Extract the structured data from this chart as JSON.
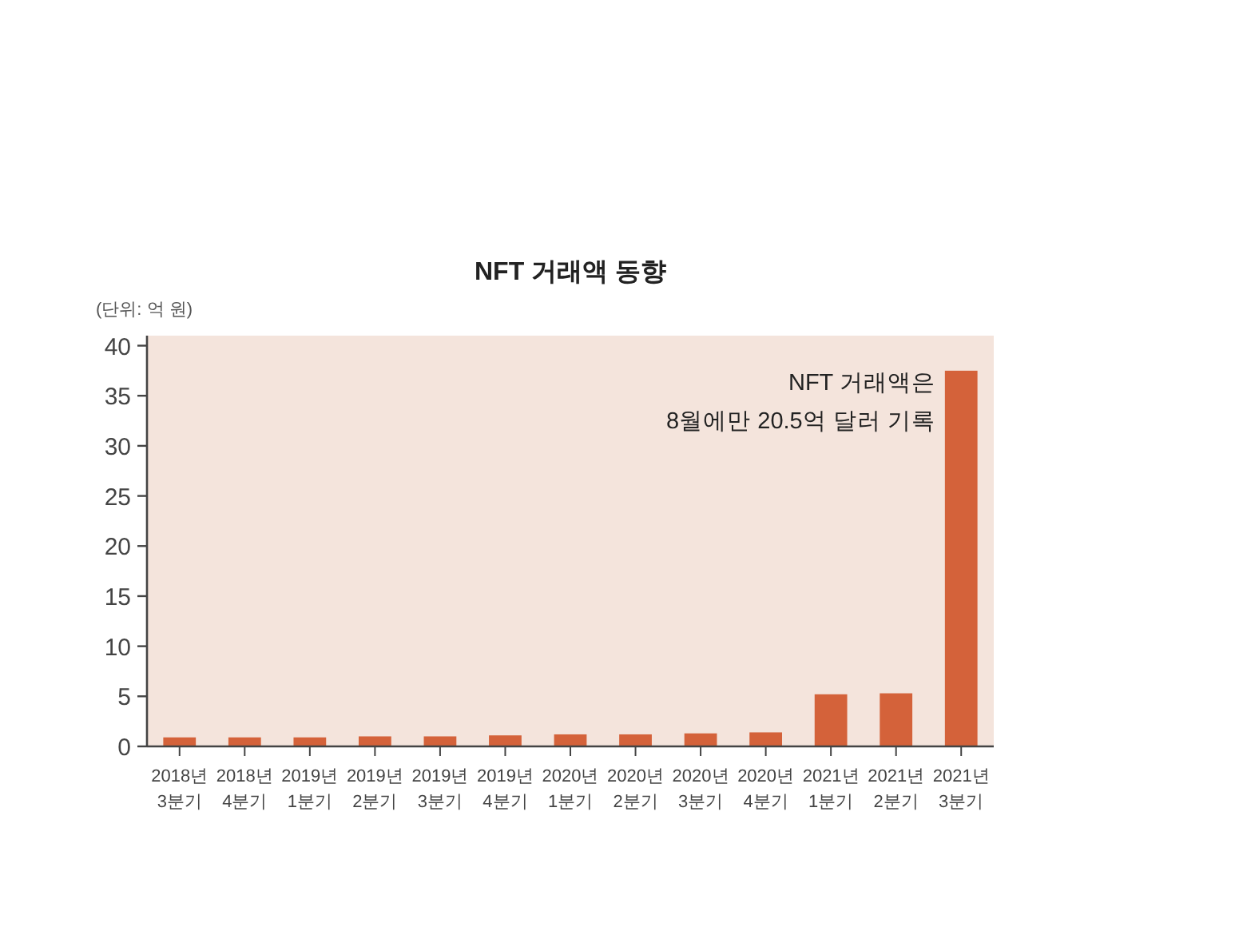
{
  "chart_data": {
    "type": "bar",
    "title": "NFT 거래액 동향",
    "ylabel": "(단위: 억 원)",
    "categories": [
      "2018년\n3분기",
      "2018년\n4분기",
      "2019년\n1분기",
      "2019년\n2분기",
      "2019년\n3분기",
      "2019년\n4분기",
      "2020년\n1분기",
      "2020년\n2분기",
      "2020년\n3분기",
      "2020년\n4분기",
      "2021년\n1분기",
      "2021년\n2분기",
      "2021년\n3분기"
    ],
    "values": [
      0.9,
      0.9,
      0.9,
      1.0,
      1.0,
      1.1,
      1.2,
      1.2,
      1.3,
      1.4,
      5.2,
      5.3,
      37.5
    ],
    "color": "#d4623a",
    "ylim": [
      0,
      41
    ],
    "yticks": [
      0,
      5,
      10,
      15,
      20,
      25,
      30,
      35,
      40
    ],
    "annotations": [
      {
        "text": "NFT 거래액은\n8월에만 20.5억 달러 기록",
        "x": "2021년\n3분기",
        "y": 37.5
      }
    ]
  }
}
